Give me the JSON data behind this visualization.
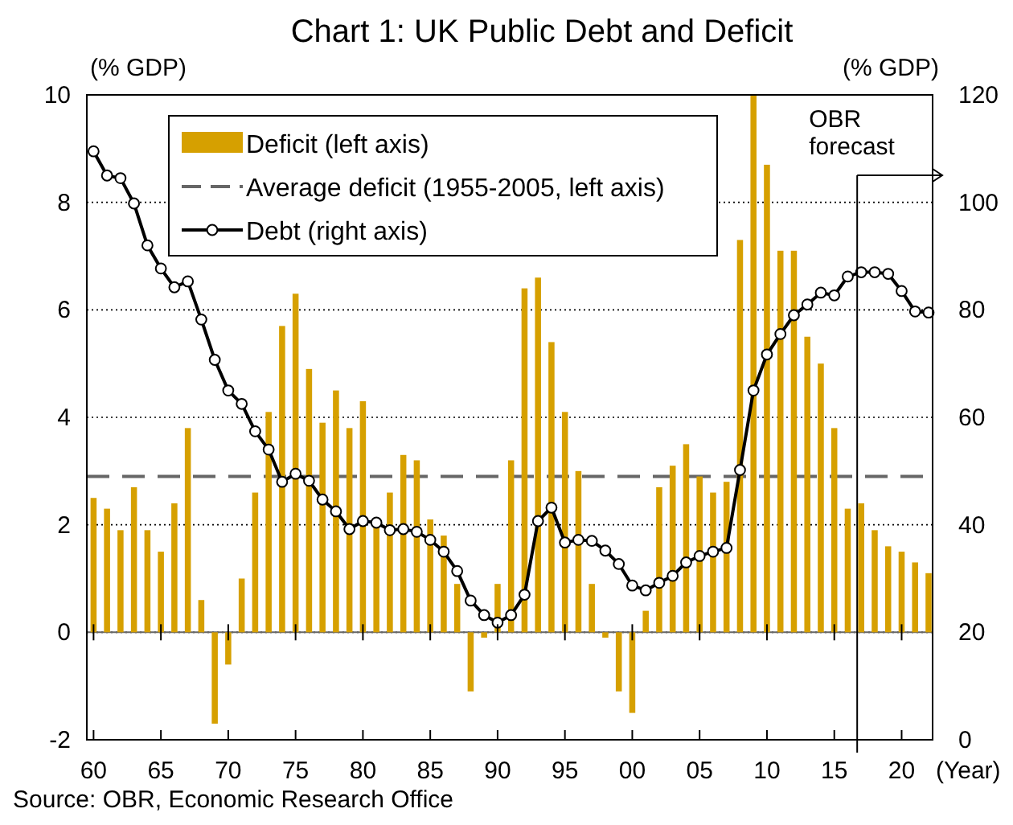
{
  "chart_data": {
    "type": "bar",
    "title": "Chart 1: UK Public Debt and Deficit",
    "ylabel": "(% GDP)",
    "y2label": "(% GDP)",
    "xlabel": "(Year)",
    "annotations": [
      "Source: OBR, Economic Research Office"
    ],
    "x": [
      1960,
      1961,
      1962,
      1963,
      1964,
      1965,
      1966,
      1967,
      1968,
      1969,
      1970,
      1971,
      1972,
      1973,
      1974,
      1975,
      1976,
      1977,
      1978,
      1979,
      1980,
      1981,
      1982,
      1983,
      1984,
      1985,
      1986,
      1987,
      1988,
      1989,
      1990,
      1991,
      1992,
      1993,
      1994,
      1995,
      1996,
      1997,
      1998,
      1999,
      2000,
      2001,
      2002,
      2003,
      2004,
      2005,
      2006,
      2007,
      2008,
      2009,
      2010,
      2011,
      2012,
      2013,
      2014,
      2015,
      2016,
      2017,
      2018,
      2019,
      2020,
      2021,
      2022
    ],
    "series": [
      {
        "name": "Deficit (left axis)",
        "type": "bar",
        "color": "#d6a000",
        "values": [
          2.5,
          2.3,
          1.9,
          2.7,
          1.9,
          1.5,
          2.4,
          3.8,
          0.6,
          -1.7,
          -0.6,
          1.0,
          2.6,
          4.1,
          5.7,
          6.3,
          4.9,
          3.9,
          4.5,
          3.8,
          4.3,
          2.0,
          2.6,
          3.3,
          3.2,
          2.1,
          1.8,
          0.9,
          -1.1,
          -0.1,
          0.9,
          3.2,
          6.4,
          6.6,
          5.4,
          4.1,
          3.0,
          0.9,
          -0.1,
          -1.1,
          -1.5,
          0.4,
          2.7,
          3.1,
          3.5,
          2.9,
          2.6,
          2.8,
          7.3,
          10.0,
          8.7,
          7.1,
          7.1,
          5.5,
          5.0,
          3.8,
          2.3,
          2.4,
          1.9,
          1.6,
          1.5,
          1.3,
          1.1
        ]
      },
      {
        "name": "Debt (right axis)",
        "type": "line",
        "axis": "y2",
        "color": "#000000",
        "marker": "circle",
        "line_style": "solid",
        "values": [
          109.5,
          105,
          104.5,
          99.8,
          92,
          87.7,
          84.2,
          85.3,
          78.2,
          70.7,
          65,
          62.5,
          57.4,
          54,
          48,
          49.5,
          48.2,
          44.7,
          42.5,
          39.2,
          40.7,
          40.4,
          39,
          39.2,
          38.7,
          37.2,
          35,
          31.4,
          25.9,
          23.2,
          21.8,
          23.2,
          27,
          40.7,
          43.2,
          36.7,
          37.2,
          37,
          35.2,
          32.7,
          28.7,
          27.8,
          29.2,
          30.5,
          33,
          34.2,
          35,
          35.7,
          50.2,
          65,
          71.7,
          75.5,
          79,
          81,
          83.2,
          82.7,
          86.2,
          87,
          87,
          86.7,
          83.5,
          79.7,
          79.5
        ]
      }
    ],
    "ref_lines": [
      {
        "axis": "y",
        "value": 2.9,
        "label": "Average deficit (1955-2005, left axis)",
        "color": "#666666",
        "line_style": "dashed"
      },
      {
        "axis": "x",
        "value": 2016.7,
        "label": "OBR forecast",
        "color": "#000000",
        "line_style": "solid"
      }
    ],
    "xlim": [
      1959.5,
      2022.3
    ],
    "xticks": [
      {
        "value": 1960,
        "label": "60"
      },
      {
        "value": 1965,
        "label": "65"
      },
      {
        "value": 1970,
        "label": "70"
      },
      {
        "value": 1975,
        "label": "75"
      },
      {
        "value": 1980,
        "label": "80"
      },
      {
        "value": 1985,
        "label": "85"
      },
      {
        "value": 1990,
        "label": "90"
      },
      {
        "value": 1995,
        "label": "95"
      },
      {
        "value": 2000,
        "label": "00"
      },
      {
        "value": 2005,
        "label": "05"
      },
      {
        "value": 2010,
        "label": "10"
      },
      {
        "value": 2015,
        "label": "15"
      },
      {
        "value": 2020,
        "label": "20"
      }
    ],
    "ylim": [
      -2,
      10
    ],
    "yticks": [
      -2,
      0,
      2,
      4,
      6,
      8,
      10
    ],
    "y2lim": [
      0,
      120
    ],
    "y2ticks": [
      0,
      20,
      40,
      60,
      80,
      100,
      120
    ],
    "grid": "y",
    "legend": "top left"
  }
}
